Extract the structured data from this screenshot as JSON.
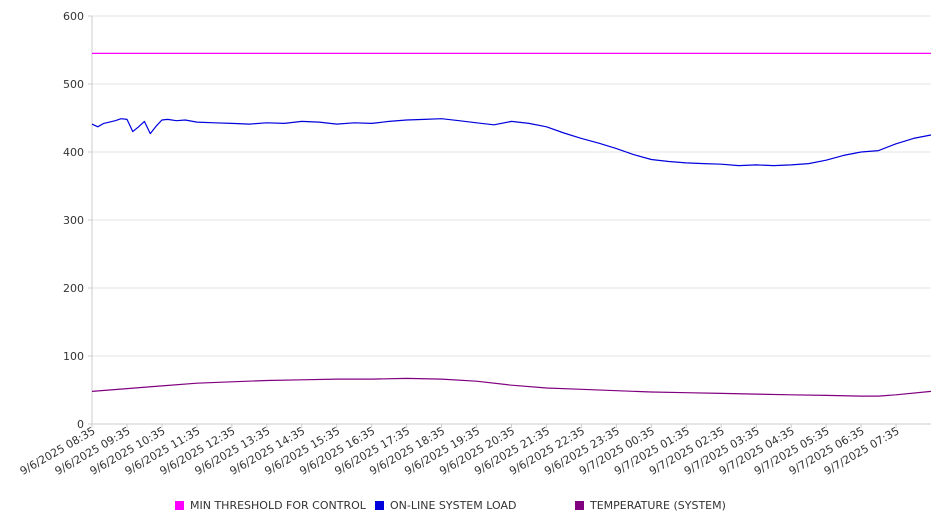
{
  "chart_data": {
    "type": "line",
    "y_ticks": [
      0,
      100,
      200,
      300,
      400,
      500,
      600
    ],
    "ylim": [
      0,
      600
    ],
    "grid": true,
    "legend_position": "bottom",
    "x_tick_labels": [
      "9/6/2025 08:35",
      "9/6/2025 09:35",
      "9/6/2025 10:35",
      "9/6/2025 11:35",
      "9/6/2025 12:35",
      "9/6/2025 13:35",
      "9/6/2025 14:35",
      "9/6/2025 15:35",
      "9/6/2025 16:35",
      "9/6/2025 17:35",
      "9/6/2025 18:35",
      "9/6/2025 19:35",
      "9/6/2025 20:35",
      "9/6/2025 21:35",
      "9/6/2025 22:35",
      "9/6/2025 23:35",
      "9/7/2025 00:35",
      "9/7/2025 01:35",
      "9/7/2025 02:35",
      "9/7/2025 03:35",
      "9/7/2025 04:35",
      "9/7/2025 05:35",
      "9/7/2025 06:35",
      "9/7/2025 07:35"
    ],
    "series": [
      {
        "name": "MIN THRESHOLD FOR CONTROL",
        "color": "#ff00ff",
        "points": [
          [
            "9/6/2025 08:35",
            545
          ],
          [
            "9/7/2025 08:35",
            545
          ]
        ]
      },
      {
        "name": "ON-LINE SYSTEM LOAD",
        "color": "#0000dd",
        "points": [
          [
            "9/6/2025 08:35",
            441
          ],
          [
            "9/6/2025 08:45",
            437
          ],
          [
            "9/6/2025 08:55",
            442
          ],
          [
            "9/6/2025 09:05",
            444
          ],
          [
            "9/6/2025 09:15",
            446
          ],
          [
            "9/6/2025 09:25",
            449
          ],
          [
            "9/6/2025 09:35",
            448
          ],
          [
            "9/6/2025 09:45",
            430
          ],
          [
            "9/6/2025 09:55",
            437
          ],
          [
            "9/6/2025 10:05",
            445
          ],
          [
            "9/6/2025 10:15",
            427
          ],
          [
            "9/6/2025 10:25",
            438
          ],
          [
            "9/6/2025 10:35",
            447
          ],
          [
            "9/6/2025 10:45",
            448
          ],
          [
            "9/6/2025 11:00",
            446
          ],
          [
            "9/6/2025 11:15",
            447
          ],
          [
            "9/6/2025 11:35",
            444
          ],
          [
            "9/6/2025 12:05",
            443
          ],
          [
            "9/6/2025 12:35",
            442
          ],
          [
            "9/6/2025 13:05",
            441
          ],
          [
            "9/6/2025 13:35",
            443
          ],
          [
            "9/6/2025 14:05",
            442
          ],
          [
            "9/6/2025 14:35",
            445
          ],
          [
            "9/6/2025 15:05",
            444
          ],
          [
            "9/6/2025 15:35",
            441
          ],
          [
            "9/6/2025 16:05",
            443
          ],
          [
            "9/6/2025 16:35",
            442
          ],
          [
            "9/6/2025 17:05",
            445
          ],
          [
            "9/6/2025 17:35",
            447
          ],
          [
            "9/6/2025 18:05",
            448
          ],
          [
            "9/6/2025 18:35",
            449
          ],
          [
            "9/6/2025 19:05",
            446
          ],
          [
            "9/6/2025 19:35",
            443
          ],
          [
            "9/6/2025 20:05",
            440
          ],
          [
            "9/6/2025 20:35",
            445
          ],
          [
            "9/6/2025 21:05",
            442
          ],
          [
            "9/6/2025 21:35",
            437
          ],
          [
            "9/6/2025 22:05",
            428
          ],
          [
            "9/6/2025 22:35",
            420
          ],
          [
            "9/6/2025 23:05",
            413
          ],
          [
            "9/6/2025 23:35",
            405
          ],
          [
            "9/7/2025 00:05",
            396
          ],
          [
            "9/7/2025 00:35",
            389
          ],
          [
            "9/7/2025 01:05",
            386
          ],
          [
            "9/7/2025 01:35",
            384
          ],
          [
            "9/7/2025 02:05",
            383
          ],
          [
            "9/7/2025 02:35",
            382
          ],
          [
            "9/7/2025 03:05",
            380
          ],
          [
            "9/7/2025 03:35",
            381
          ],
          [
            "9/7/2025 04:05",
            380
          ],
          [
            "9/7/2025 04:35",
            381
          ],
          [
            "9/7/2025 05:05",
            383
          ],
          [
            "9/7/2025 05:35",
            388
          ],
          [
            "9/7/2025 06:05",
            395
          ],
          [
            "9/7/2025 06:35",
            400
          ],
          [
            "9/7/2025 07:05",
            402
          ],
          [
            "9/7/2025 07:35",
            412
          ],
          [
            "9/7/2025 08:05",
            420
          ],
          [
            "9/7/2025 08:35",
            425
          ]
        ]
      },
      {
        "name": "TEMPERATURE (SYSTEM)",
        "color": "#800080",
        "points": [
          [
            "9/6/2025 08:35",
            48
          ],
          [
            "9/6/2025 09:35",
            52
          ],
          [
            "9/6/2025 10:35",
            56
          ],
          [
            "9/6/2025 11:35",
            60
          ],
          [
            "9/6/2025 12:35",
            62
          ],
          [
            "9/6/2025 13:35",
            64
          ],
          [
            "9/6/2025 14:35",
            65
          ],
          [
            "9/6/2025 15:35",
            66
          ],
          [
            "9/6/2025 16:35",
            66
          ],
          [
            "9/6/2025 17:35",
            67
          ],
          [
            "9/6/2025 18:35",
            66
          ],
          [
            "9/6/2025 19:35",
            63
          ],
          [
            "9/6/2025 20:35",
            57
          ],
          [
            "9/6/2025 21:35",
            53
          ],
          [
            "9/6/2025 22:35",
            51
          ],
          [
            "9/6/2025 23:35",
            49
          ],
          [
            "9/7/2025 00:35",
            47
          ],
          [
            "9/7/2025 01:35",
            46
          ],
          [
            "9/7/2025 02:35",
            45
          ],
          [
            "9/7/2025 03:35",
            44
          ],
          [
            "9/7/2025 04:35",
            43
          ],
          [
            "9/7/2025 05:35",
            42
          ],
          [
            "9/7/2025 06:35",
            41
          ],
          [
            "9/7/2025 07:05",
            41
          ],
          [
            "9/7/2025 07:35",
            43
          ],
          [
            "9/7/2025 08:35",
            48
          ]
        ]
      }
    ]
  }
}
